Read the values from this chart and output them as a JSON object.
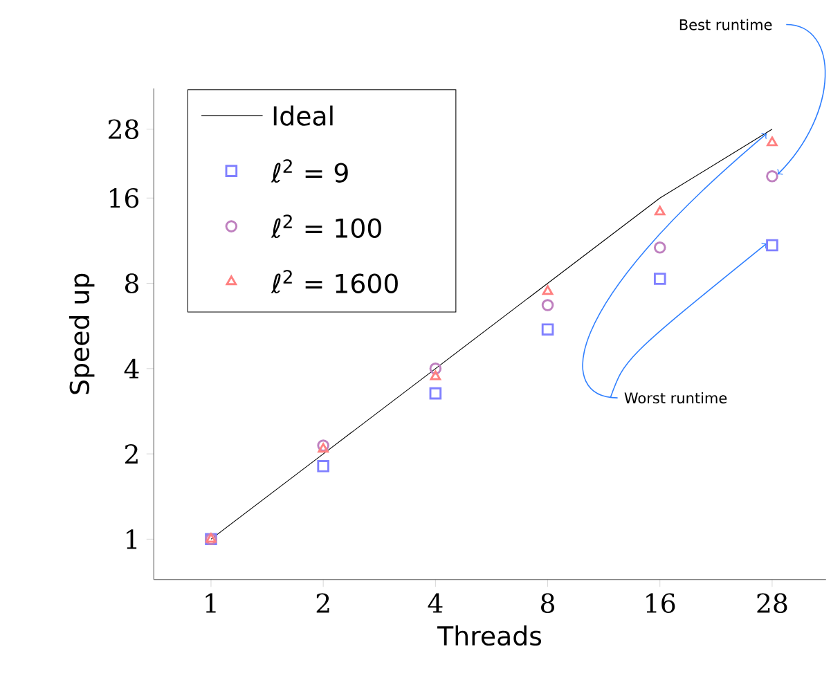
{
  "chart_data": {
    "type": "scatter",
    "xlabel": "Threads",
    "ylabel": "Speed up",
    "categories": [
      "1",
      "2",
      "4",
      "8",
      "16",
      "28"
    ],
    "series": [
      {
        "name": "Ideal",
        "type": "line",
        "color": "#000000",
        "marker": "none",
        "values": [
          1,
          2,
          4,
          8,
          16,
          28
        ]
      },
      {
        "name": "ℓ$^{2}$ = 9",
        "color": "#8080ff",
        "marker": "square",
        "values": [
          1,
          1.81,
          3.27,
          5.5,
          8.3,
          10.9
        ]
      },
      {
        "name": "ℓ$^{2}$ = 100",
        "color": "#bf80bf",
        "marker": "circle",
        "values": [
          1,
          2.14,
          4.0,
          6.7,
          10.7,
          19.1
        ]
      },
      {
        "name": "ℓ$^{2}$ = 1600",
        "color": "#ff8080",
        "marker": "triangle",
        "values": [
          1,
          2.08,
          3.75,
          7.5,
          14.3,
          25.1
        ]
      }
    ],
    "log": "y",
    "ylim": [
      0.72,
      39
    ],
    "yticks": [
      1,
      2,
      4,
      8,
      16,
      28
    ],
    "legend": "top left",
    "grid": false,
    "annotations": [
      {
        "text": "Best runtime",
        "x": "28",
        "y": 19.1
      },
      {
        "text": "Worst runtime",
        "x": "28",
        "y": 10.9
      }
    ]
  }
}
